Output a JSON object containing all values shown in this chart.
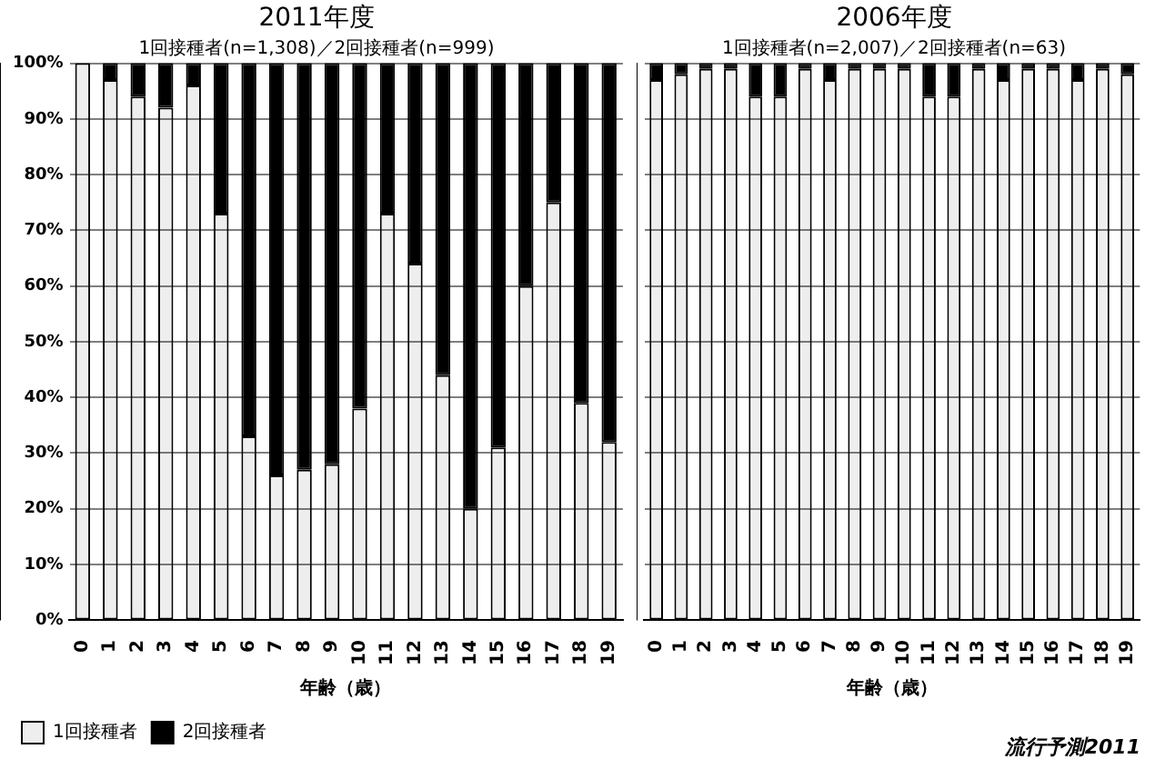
{
  "chart_data": [
    {
      "type": "bar",
      "title": "2011年度",
      "subtitle": "1回接種者(n=1,308)／2回接種者(n=999)",
      "xlabel": "年齢（歳）",
      "categories": [
        "0",
        "1",
        "2",
        "3",
        "4",
        "5",
        "6",
        "7",
        "8",
        "9",
        "10",
        "11",
        "12",
        "13",
        "14",
        "15",
        "16",
        "17",
        "18",
        "19"
      ],
      "stacked": true,
      "series": [
        {
          "name": "1回接種者",
          "color": "#eeeeee",
          "values": [
            100,
            97,
            94,
            92,
            96,
            73,
            33,
            26,
            27,
            28,
            38,
            73,
            64,
            44,
            20,
            31,
            60,
            75,
            39,
            32
          ]
        },
        {
          "name": "2回接種者",
          "color": "#000000",
          "values": [
            0,
            3,
            6,
            8,
            4,
            27,
            67,
            74,
            73,
            72,
            62,
            27,
            36,
            56,
            80,
            69,
            40,
            25,
            61,
            68
          ]
        }
      ],
      "ylim": [
        0,
        100
      ],
      "yticks": [
        {
          "value": 0,
          "label": "0%"
        },
        {
          "value": 10,
          "label": "10%"
        },
        {
          "value": 20,
          "label": "20%"
        },
        {
          "value": 30,
          "label": "30%"
        },
        {
          "value": 40,
          "label": "40%"
        },
        {
          "value": 50,
          "label": "50%"
        },
        {
          "value": 60,
          "label": "60%"
        },
        {
          "value": 70,
          "label": "70%"
        },
        {
          "value": 80,
          "label": "80%"
        },
        {
          "value": 90,
          "label": "90%"
        },
        {
          "value": 100,
          "label": "100%"
        }
      ],
      "grid": "y",
      "legend": "bottom left"
    },
    {
      "type": "bar",
      "title": "2006年度",
      "subtitle": "1回接種者(n=2,007)／2回接種者(n=63)",
      "xlabel": "年齢（歳）",
      "categories": [
        "0",
        "1",
        "2",
        "3",
        "4",
        "5",
        "6",
        "7",
        "8",
        "9",
        "10",
        "11",
        "12",
        "13",
        "14",
        "15",
        "16",
        "17",
        "18",
        "19"
      ],
      "stacked": true,
      "series": [
        {
          "color": "#eeeeee",
          "values": [
            97,
            98,
            99,
            99,
            94,
            94,
            99,
            97,
            99,
            99,
            99,
            94,
            94,
            99,
            97,
            99,
            99,
            97,
            99,
            98
          ]
        },
        {
          "color": "#000000",
          "values": [
            3,
            2,
            1,
            1,
            6,
            6,
            1,
            3,
            1,
            1,
            1,
            6,
            6,
            1,
            3,
            1,
            1,
            3,
            1,
            2
          ]
        }
      ],
      "ylim": [
        0,
        100
      ],
      "yticks": [
        {
          "value": 0,
          "label": null
        },
        {
          "value": 10,
          "label": null
        },
        {
          "value": 20,
          "label": null
        },
        {
          "value": 30,
          "label": null
        },
        {
          "value": 40,
          "label": null
        },
        {
          "value": 50,
          "label": null
        },
        {
          "value": 60,
          "label": null
        },
        {
          "value": 70,
          "label": null
        },
        {
          "value": 80,
          "label": null
        },
        {
          "value": 90,
          "label": null
        },
        {
          "value": 100,
          "label": null
        }
      ],
      "grid": "y",
      "tick_labels": "x",
      "legend": false,
      "annotations": [
        "流行予測2011"
      ]
    }
  ]
}
